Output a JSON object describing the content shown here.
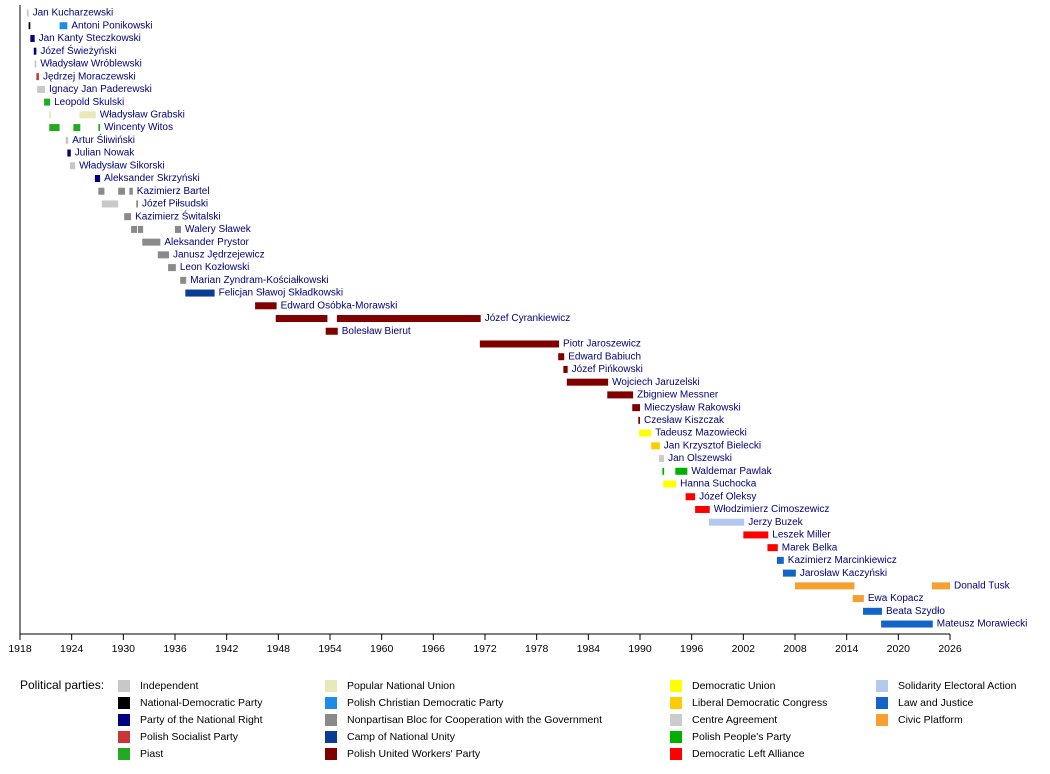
{
  "chart_data": {
    "type": "timeline",
    "xlim": [
      1918,
      2026
    ],
    "xticks": [
      1918,
      1924,
      1930,
      1936,
      1942,
      1948,
      1954,
      1960,
      1966,
      1972,
      1978,
      1984,
      1990,
      1996,
      2002,
      2008,
      2014,
      2020,
      2026
    ],
    "legend_title": "Political parties:",
    "parties": [
      {
        "name": "Independent",
        "color": "#c8c8c8"
      },
      {
        "name": "National-Democratic Party",
        "color": "#000000"
      },
      {
        "name": "Party of the National Right",
        "color": "#000080"
      },
      {
        "name": "Polish Socialist Party",
        "color": "#c83737"
      },
      {
        "name": "Piast",
        "color": "#22aa22"
      },
      {
        "name": "Popular National Union",
        "color": "#e8e8b8"
      },
      {
        "name": "Polish Christian Democratic Party",
        "color": "#1e8ce6"
      },
      {
        "name": "Nonpartisan Bloc for Cooperation with the Government",
        "color": "#8a8a8a"
      },
      {
        "name": "Camp of National Unity",
        "color": "#0a3c96"
      },
      {
        "name": "Polish United Workers' Party",
        "color": "#800000"
      },
      {
        "name": "Democratic Union",
        "color": "#ffff00"
      },
      {
        "name": "Liberal Democratic Congress",
        "color": "#ffcc00"
      },
      {
        "name": "Centre Agreement",
        "color": "#cccccc"
      },
      {
        "name": "Polish People's Party",
        "color": "#00b000"
      },
      {
        "name": "Democratic Left Alliance",
        "color": "#ff0000"
      },
      {
        "name": "Solidarity Electoral Action",
        "color": "#b4c8f0"
      },
      {
        "name": "Law and Justice",
        "color": "#1464c8"
      },
      {
        "name": "Civic Platform",
        "color": "#f5a030"
      }
    ],
    "rows": [
      {
        "name": "Jan Kucharzewski",
        "terms": [
          {
            "start": 1918.8,
            "end": 1919.0,
            "party": 0
          }
        ]
      },
      {
        "name": "Antoni Ponikowski",
        "terms": [
          {
            "start": 1919.0,
            "end": 1919.2,
            "party": 1
          },
          {
            "start": 1922.6,
            "end": 1923.5,
            "party": 6
          }
        ]
      },
      {
        "name": "Jan Kanty Steczkowski",
        "terms": [
          {
            "start": 1919.2,
            "end": 1919.7,
            "party": 2
          }
        ]
      },
      {
        "name": "Józef Świeżyński",
        "terms": [
          {
            "start": 1919.6,
            "end": 1919.9,
            "party": 2
          }
        ]
      },
      {
        "name": "Władysław Wróblewski",
        "terms": [
          {
            "start": 1919.7,
            "end": 1919.9,
            "party": 0
          }
        ]
      },
      {
        "name": "Jędrzej Moraczewski",
        "terms": [
          {
            "start": 1919.9,
            "end": 1920.2,
            "party": 3
          }
        ]
      },
      {
        "name": "Ignacy Jan Paderewski",
        "terms": [
          {
            "start": 1920.0,
            "end": 1920.9,
            "party": 0
          }
        ]
      },
      {
        "name": "Leopold Skulski",
        "terms": [
          {
            "start": 1920.8,
            "end": 1921.5,
            "party": 4
          }
        ]
      },
      {
        "name": "Władysław Grabski",
        "terms": [
          {
            "start": 1921.4,
            "end": 1921.6,
            "party": 5
          },
          {
            "start": 1924.9,
            "end": 1926.8,
            "party": 5
          }
        ]
      },
      {
        "name": "Wincenty Witos",
        "terms": [
          {
            "start": 1921.4,
            "end": 1922.6,
            "party": 4
          },
          {
            "start": 1924.2,
            "end": 1925.0,
            "party": 4
          },
          {
            "start": 1927.1,
            "end": 1927.3,
            "party": 4
          }
        ]
      },
      {
        "name": "Artur Śliwiński",
        "terms": [
          {
            "start": 1923.3,
            "end": 1923.6,
            "party": 0
          }
        ]
      },
      {
        "name": "Julian Nowak",
        "terms": [
          {
            "start": 1923.5,
            "end": 1923.9,
            "party": 2
          }
        ]
      },
      {
        "name": "Władysław Sikorski",
        "terms": [
          {
            "start": 1923.8,
            "end": 1924.4,
            "party": 0
          }
        ]
      },
      {
        "name": "Aleksander Skrzyński",
        "terms": [
          {
            "start": 1926.7,
            "end": 1927.3,
            "party": 2
          }
        ]
      },
      {
        "name": "Kazimierz Bartel",
        "terms": [
          {
            "start": 1927.1,
            "end": 1927.8,
            "party": 7
          },
          {
            "start": 1929.4,
            "end": 1930.2,
            "party": 7
          },
          {
            "start": 1930.7,
            "end": 1931.1,
            "party": 7
          }
        ]
      },
      {
        "name": "Józef Piłsudski",
        "terms": [
          {
            "start": 1927.5,
            "end": 1929.4,
            "party": 0
          },
          {
            "start": 1931.5,
            "end": 1931.7,
            "party": 7
          }
        ]
      },
      {
        "name": "Kazimierz Świtalski",
        "terms": [
          {
            "start": 1930.1,
            "end": 1930.9,
            "party": 7
          }
        ]
      },
      {
        "name": "Walery Sławek",
        "terms": [
          {
            "start": 1930.9,
            "end": 1931.6,
            "party": 7
          },
          {
            "start": 1931.7,
            "end": 1932.3,
            "party": 7
          },
          {
            "start": 1936.0,
            "end": 1936.7,
            "party": 7
          }
        ]
      },
      {
        "name": "Aleksander Prystor",
        "terms": [
          {
            "start": 1932.2,
            "end": 1934.3,
            "party": 7
          }
        ]
      },
      {
        "name": "Janusz Jędrzejewicz",
        "terms": [
          {
            "start": 1934.0,
            "end": 1935.3,
            "party": 7
          }
        ]
      },
      {
        "name": "Leon Kozłowski",
        "terms": [
          {
            "start": 1935.2,
            "end": 1936.1,
            "party": 7
          }
        ]
      },
      {
        "name": "Marian Zyndram-Kościałkowski",
        "terms": [
          {
            "start": 1936.6,
            "end": 1937.3,
            "party": 7
          }
        ]
      },
      {
        "name": "Felicjan Sławoj Składkowski",
        "terms": [
          {
            "start": 1937.2,
            "end": 1940.6,
            "party": 8
          }
        ]
      },
      {
        "name": "Edward Osóbka-Morawski",
        "terms": [
          {
            "start": 1945.3,
            "end": 1947.8,
            "party": 9
          }
        ]
      },
      {
        "name": "Józef Cyrankiewicz",
        "terms": [
          {
            "start": 1947.7,
            "end": 1953.7,
            "party": 9
          },
          {
            "start": 1954.8,
            "end": 1971.5,
            "party": 9
          }
        ]
      },
      {
        "name": "Bolesław Bierut",
        "terms": [
          {
            "start": 1953.5,
            "end": 1954.9,
            "party": 9
          }
        ]
      },
      {
        "name": "Piotr Jaroszewicz",
        "terms": [
          {
            "start": 1971.4,
            "end": 1980.6,
            "party": 9
          }
        ]
      },
      {
        "name": "Edward Babiuch",
        "terms": [
          {
            "start": 1980.5,
            "end": 1981.2,
            "party": 9
          }
        ]
      },
      {
        "name": "Józef Pińkowski",
        "terms": [
          {
            "start": 1981.1,
            "end": 1981.6,
            "party": 9
          }
        ]
      },
      {
        "name": "Wojciech Jaruzelski",
        "terms": [
          {
            "start": 1981.5,
            "end": 1986.3,
            "party": 9
          }
        ]
      },
      {
        "name": "Zbigniew Messner",
        "terms": [
          {
            "start": 1986.2,
            "end": 1989.2,
            "party": 9
          }
        ]
      },
      {
        "name": "Mieczysław Rakowski",
        "terms": [
          {
            "start": 1989.1,
            "end": 1990.0,
            "party": 9
          }
        ]
      },
      {
        "name": "Czesław Kiszczak",
        "terms": [
          {
            "start": 1989.8,
            "end": 1990.0,
            "party": 9
          }
        ]
      },
      {
        "name": "Tadeusz Mazowiecki",
        "terms": [
          {
            "start": 1989.9,
            "end": 1991.3,
            "party": 10
          }
        ]
      },
      {
        "name": "Jan Krzysztof Bielecki",
        "terms": [
          {
            "start": 1991.3,
            "end": 1992.3,
            "party": 11
          }
        ]
      },
      {
        "name": "Jan Olszewski",
        "terms": [
          {
            "start": 1992.2,
            "end": 1992.8,
            "party": 12
          }
        ]
      },
      {
        "name": "Waldemar Pawlak",
        "terms": [
          {
            "start": 1992.6,
            "end": 1992.8,
            "party": 13
          },
          {
            "start": 1994.1,
            "end": 1995.5,
            "party": 13
          }
        ]
      },
      {
        "name": "Hanna Suchocka",
        "terms": [
          {
            "start": 1992.7,
            "end": 1994.2,
            "party": 10
          }
        ]
      },
      {
        "name": "Józef Oleksy",
        "terms": [
          {
            "start": 1995.3,
            "end": 1996.4,
            "party": 14
          }
        ]
      },
      {
        "name": "Włodzimierz Cimoszewicz",
        "terms": [
          {
            "start": 1996.4,
            "end": 1998.1,
            "party": 14
          }
        ]
      },
      {
        "name": "Jerzy Buzek",
        "terms": [
          {
            "start": 1998.0,
            "end": 2002.1,
            "party": 15
          }
        ]
      },
      {
        "name": "Leszek Miller",
        "terms": [
          {
            "start": 2002.0,
            "end": 2004.9,
            "party": 14
          }
        ]
      },
      {
        "name": "Marek Belka",
        "terms": [
          {
            "start": 2004.8,
            "end": 2006.0,
            "party": 14
          }
        ]
      },
      {
        "name": "Kazimierz Marcinkiewicz",
        "terms": [
          {
            "start": 2005.9,
            "end": 2006.7,
            "party": 16
          }
        ]
      },
      {
        "name": "Jarosław Kaczyński",
        "terms": [
          {
            "start": 2006.6,
            "end": 2008.1,
            "party": 16
          }
        ]
      },
      {
        "name": "Donald Tusk",
        "terms": [
          {
            "start": 2008.0,
            "end": 2014.9,
            "party": 17
          },
          {
            "start": 2023.9,
            "end": 2026.0,
            "party": 17
          }
        ]
      },
      {
        "name": "Ewa Kopacz",
        "terms": [
          {
            "start": 2014.7,
            "end": 2016.0,
            "party": 17
          }
        ]
      },
      {
        "name": "Beata Szydło",
        "terms": [
          {
            "start": 2015.9,
            "end": 2018.1,
            "party": 16
          }
        ]
      },
      {
        "name": "Mateusz Morawiecki",
        "terms": [
          {
            "start": 2018.0,
            "end": 2024.0,
            "party": 16
          }
        ]
      }
    ]
  }
}
